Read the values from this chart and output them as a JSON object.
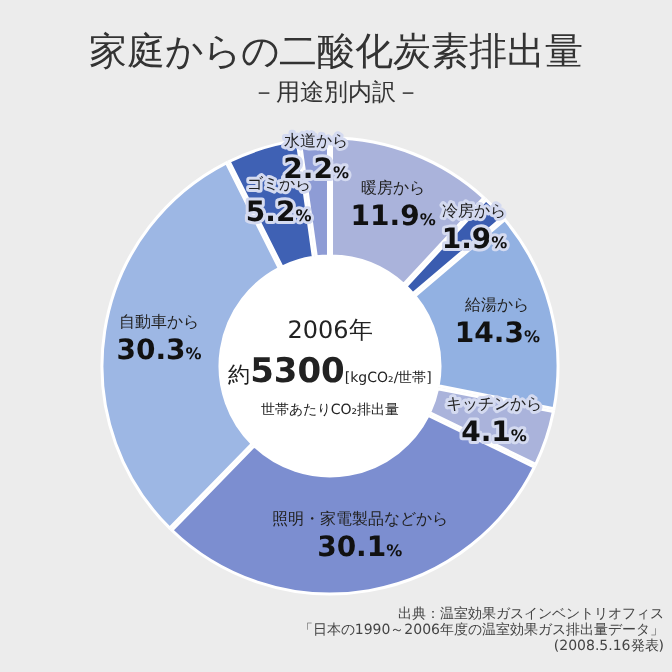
{
  "chart_data": {
    "type": "donut",
    "title": "家庭からの二酸化炭素排出量",
    "subtitle": "－用途別内訳－",
    "categories": [
      "暖房から",
      "冷房から",
      "給湯から",
      "キッチンから",
      "照明・家電製品などから",
      "自動車から",
      "ゴミから",
      "水道から"
    ],
    "values": [
      11.9,
      1.9,
      14.3,
      4.1,
      30.1,
      30.3,
      5.2,
      2.2
    ],
    "value_labels": [
      "11.9%",
      "1.9%",
      "14.3%",
      "4.1%",
      "30.1%",
      "30.3%",
      "5.2%",
      "2.2%"
    ],
    "colors": [
      "#aab3db",
      "#3a5cb0",
      "#92b1e2",
      "#aab3db",
      "#7c8ed0",
      "#9db7e4",
      "#3f61b4",
      "#8e9cd5"
    ],
    "annotations": [
      "2006年",
      "約5300[kgCO₂/世帯]",
      "世帯あたりCO₂排出量",
      "出典：温室効果ガスインベントリオフィス「日本の1990～2006年度の温室効果ガス排出量データ」(2008.5.16発表)"
    ],
    "data_labels": false
  }
}
